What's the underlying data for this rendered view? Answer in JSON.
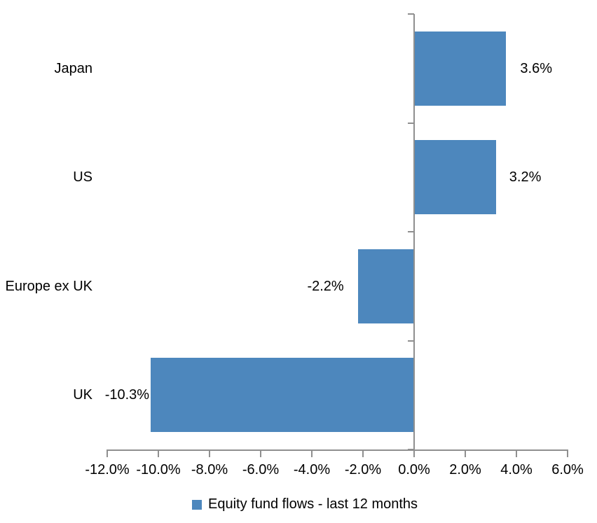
{
  "chart_data": {
    "type": "bar",
    "orientation": "horizontal",
    "title": "",
    "categories": [
      "Japan",
      "US",
      "Europe ex UK",
      "UK"
    ],
    "series": [
      {
        "name": "Equity fund flows - last 12 months",
        "values": [
          3.6,
          3.2,
          -2.2,
          -10.3
        ],
        "data_labels": [
          "3.6%",
          "3.2%",
          "-2.2%",
          "-10.3%"
        ],
        "color": "#4D87BD"
      }
    ],
    "xlim": [
      -12,
      6
    ],
    "x_ticks": [
      -12,
      -10,
      -8,
      -6,
      -4,
      -2,
      0,
      2,
      4,
      6
    ],
    "x_tick_labels": [
      "-12.0%",
      "-10.0%",
      "-8.0%",
      "-6.0%",
      "-4.0%",
      "-2.0%",
      "0.0%",
      "2.0%",
      "4.0%",
      "6.0%"
    ],
    "grid": false,
    "axis_color": "#8F8F8F",
    "text_color": "#000000",
    "background_color": "#FFFFFF",
    "legend": {
      "position": "bottom-center",
      "label": "Equity fund flows - last 12 months",
      "swatch_color": "#4D87BD"
    }
  }
}
